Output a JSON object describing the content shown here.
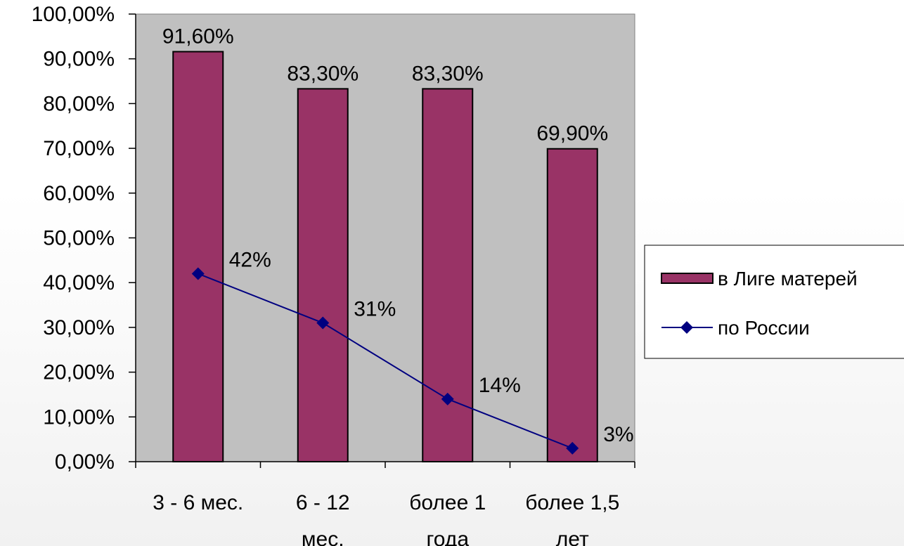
{
  "chart_data": {
    "type": "bar",
    "categories": [
      [
        "3 - 6 мес.",
        ""
      ],
      [
        "6 - 12",
        "мес."
      ],
      [
        "более 1",
        "года"
      ],
      [
        "более 1,5",
        "лет"
      ]
    ],
    "ylim": [
      0,
      100
    ],
    "yticks": [
      "0,00%",
      "10,00%",
      "20,00%",
      "30,00%",
      "40,00%",
      "50,00%",
      "60,00%",
      "70,00%",
      "80,00%",
      "90,00%",
      "100,00%"
    ],
    "grid": false,
    "legend_position": "right",
    "series": [
      {
        "name": "в Лиге матерей",
        "type": "bar",
        "color": "#993366",
        "values": [
          91.6,
          83.3,
          83.3,
          69.9
        ],
        "labels": [
          "91,60%",
          "83,30%",
          "83,30%",
          "69,90%"
        ]
      },
      {
        "name": "по России",
        "type": "line",
        "color": "#000080",
        "marker": "diamond",
        "values": [
          42,
          31,
          14,
          3
        ],
        "labels": [
          "42%",
          "31%",
          "14%",
          "3%"
        ]
      }
    ],
    "plot_background": "#c0c0c0"
  }
}
